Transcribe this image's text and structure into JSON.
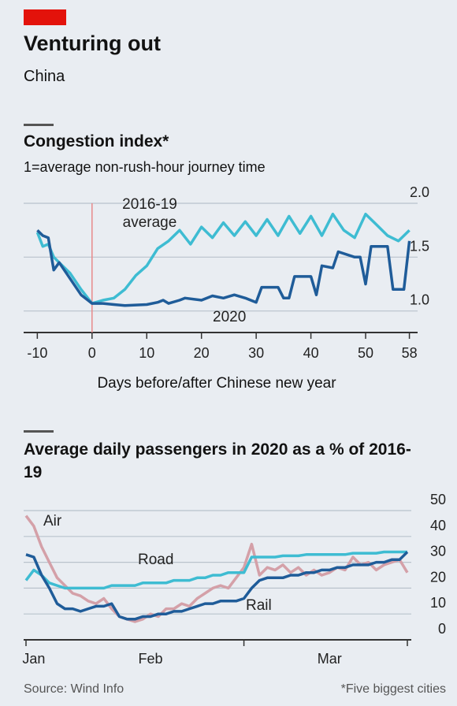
{
  "header": {
    "title": "Venturing out",
    "subtitle": "China"
  },
  "chart_data": [
    {
      "type": "line",
      "title": "Congestion index*",
      "subtitle": "1=average non-rush-hour journey time",
      "xlabel": "Days before/after Chinese new year",
      "xlim": [
        -12.5,
        59.5
      ],
      "xticks": [
        -10,
        0,
        10,
        20,
        30,
        40,
        50,
        58
      ],
      "ylim": [
        0.8,
        2.0
      ],
      "yticks": [
        {
          "value": 1,
          "label": "1.0"
        },
        {
          "value": 1.5,
          "label": "1.5"
        },
        {
          "value": 2,
          "label": "2.0"
        }
      ],
      "grid": true,
      "series": [
        {
          "name": "2016-19 average",
          "color": "#3ebcd2",
          "x": [
            -10,
            -9,
            -8,
            -7,
            -6,
            -4,
            -2,
            0,
            2,
            4,
            6,
            8,
            10,
            12,
            14,
            16,
            18,
            20,
            22,
            24,
            26,
            28,
            30,
            32,
            34,
            36,
            38,
            40,
            42,
            44,
            46,
            48,
            50,
            52,
            54,
            56,
            58
          ],
          "values": [
            1.73,
            1.6,
            1.62,
            1.5,
            1.45,
            1.35,
            1.2,
            1.07,
            1.1,
            1.12,
            1.2,
            1.33,
            1.42,
            1.58,
            1.65,
            1.75,
            1.62,
            1.78,
            1.68,
            1.82,
            1.7,
            1.83,
            1.7,
            1.85,
            1.7,
            1.88,
            1.72,
            1.88,
            1.7,
            1.9,
            1.75,
            1.68,
            1.9,
            1.8,
            1.7,
            1.65,
            1.75
          ]
        },
        {
          "name": "2020",
          "color": "#1f5c99",
          "x": [
            -10,
            -9,
            -8,
            -7,
            -6,
            -4,
            -2,
            0,
            2,
            4,
            6,
            10,
            12,
            13,
            14,
            16,
            17,
            20,
            22,
            24,
            26,
            28,
            30,
            31,
            34,
            35,
            36,
            37,
            40,
            41,
            42,
            44,
            45,
            48,
            49,
            50,
            51,
            54,
            55,
            56,
            57,
            58
          ],
          "values": [
            1.75,
            1.7,
            1.68,
            1.38,
            1.45,
            1.3,
            1.15,
            1.07,
            1.07,
            1.06,
            1.05,
            1.06,
            1.08,
            1.1,
            1.07,
            1.1,
            1.12,
            1.1,
            1.14,
            1.12,
            1.15,
            1.12,
            1.08,
            1.22,
            1.22,
            1.12,
            1.12,
            1.32,
            1.32,
            1.15,
            1.42,
            1.4,
            1.55,
            1.5,
            1.5,
            1.25,
            1.6,
            1.6,
            1.2,
            1.2,
            1.2,
            1.65
          ]
        }
      ]
    },
    {
      "type": "line",
      "title": "Average daily passengers in 2020 as a % of 2016-19",
      "categories": [
        null,
        "Jan",
        null,
        null,
        null,
        null,
        null,
        null,
        null,
        null,
        null,
        null,
        null,
        null,
        null,
        null,
        "Feb",
        null,
        null,
        null,
        null,
        null,
        null,
        null,
        null,
        null,
        null,
        null,
        null,
        null,
        null,
        null,
        null,
        null,
        null,
        null,
        null,
        null,
        null,
        "Mar",
        null,
        null,
        null,
        null,
        null,
        null,
        null,
        null,
        null,
        null
      ],
      "ylim": [
        0,
        50
      ],
      "yticks": [
        0,
        10,
        20,
        30,
        40,
        50
      ],
      "grid": true,
      "series": [
        {
          "name": "Air",
          "color": "#d4a0a8",
          "values": [
            48,
            44,
            36,
            30,
            24,
            21,
            18,
            17,
            15,
            14,
            16,
            12,
            9,
            8,
            7,
            8,
            10,
            9,
            12,
            12,
            14,
            13,
            16,
            18,
            20,
            21,
            20,
            24,
            28,
            37,
            25,
            28,
            27,
            29,
            26,
            28,
            25,
            27,
            25,
            26,
            28,
            27,
            32,
            29,
            30,
            27,
            29,
            30,
            31,
            26
          ]
        },
        {
          "name": "Road",
          "color": "#3ebcd2",
          "values": [
            23,
            27,
            25,
            22,
            21,
            20,
            20,
            20,
            20,
            20,
            20,
            21,
            21,
            21,
            21,
            22,
            22,
            22,
            22,
            23,
            23,
            23,
            24,
            24,
            25,
            25,
            26,
            26,
            26,
            32,
            32,
            32,
            32,
            32.5,
            32.5,
            32.5,
            33,
            33,
            33,
            33,
            33,
            33,
            33.5,
            33.5,
            33.5,
            33.5,
            34,
            34,
            34,
            34
          ]
        },
        {
          "name": "Rail",
          "color": "#1f5c99",
          "values": [
            33,
            32,
            25,
            20,
            14,
            12,
            12,
            11,
            12,
            13,
            13,
            14,
            9,
            8,
            8,
            9,
            9,
            10,
            10,
            11,
            11,
            12,
            13,
            14,
            14,
            15,
            15,
            15,
            16,
            20,
            23,
            24,
            24,
            24,
            25,
            25,
            26,
            26,
            27,
            27,
            28,
            28,
            29,
            29,
            29,
            30,
            30,
            31,
            31,
            34
          ]
        }
      ]
    }
  ],
  "footer": {
    "source": "Source: Wind Info",
    "note": "*Five biggest cities"
  }
}
